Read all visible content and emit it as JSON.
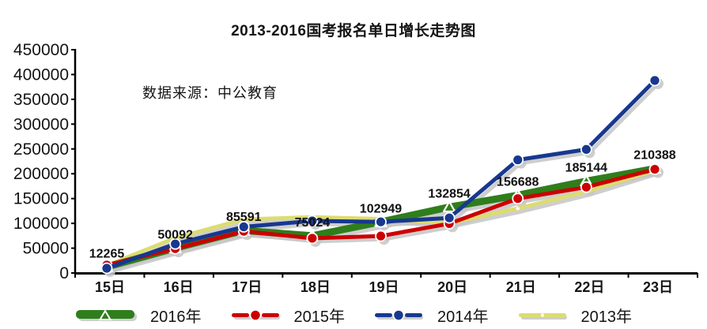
{
  "title": "2013-2016国考报名单日增长走势图",
  "source_note": "数据来源：中公教育",
  "colors": {
    "text": "#141414",
    "axis": "#000000",
    "shadow": "#c6c6c6",
    "green_2016": "#2f7e1c",
    "red_2015": "#cc0000",
    "blue_2014": "#17388f",
    "yellow_2013": "#dcdc73"
  },
  "chart_data": {
    "type": "line",
    "title": "2013-2016国考报名单日增长走势图",
    "xlabel": "",
    "ylabel": "",
    "grid": false,
    "legend_position": "bottom",
    "categories": [
      "15日",
      "16日",
      "17日",
      "18日",
      "19日",
      "20日",
      "21日",
      "22日",
      "23日"
    ],
    "y_axis": {
      "min": 0,
      "max": 450000,
      "step": 50000,
      "tick_labels": [
        "450000",
        "400000",
        "350000",
        "300000",
        "250000",
        "200000",
        "150000",
        "100000",
        "50000",
        "0"
      ]
    },
    "series": [
      {
        "name": "2016年",
        "color": "#2f7e1c",
        "marker": "triangle",
        "line_width": 9,
        "values": [
          12265,
          50092,
          85591,
          75024,
          102949,
          132854,
          156688,
          185144,
          210388
        ]
      },
      {
        "name": "2015年",
        "color": "#cc0000",
        "marker": "circle",
        "line_width": 5,
        "values": [
          16000,
          49000,
          84000,
          70000,
          74500,
          99500,
          150000,
          173000,
          209000
        ]
      },
      {
        "name": "2014年",
        "color": "#17388f",
        "marker": "circle",
        "line_width": 5,
        "values": [
          9500,
          58500,
          93000,
          105000,
          103000,
          111000,
          228000,
          249000,
          388000
        ]
      },
      {
        "name": "2013年",
        "color": "#dcdc73",
        "marker": "dash",
        "line_width": 5,
        "values": [
          15000,
          70500,
          108000,
          112500,
          109000,
          100500,
          130000,
          164000,
          206500
        ]
      }
    ],
    "data_labels": {
      "series": "2016年",
      "values": [
        "12265",
        "50092",
        "85591",
        "75024",
        "102949",
        "132854",
        "156688",
        "185144",
        "210388"
      ]
    }
  }
}
